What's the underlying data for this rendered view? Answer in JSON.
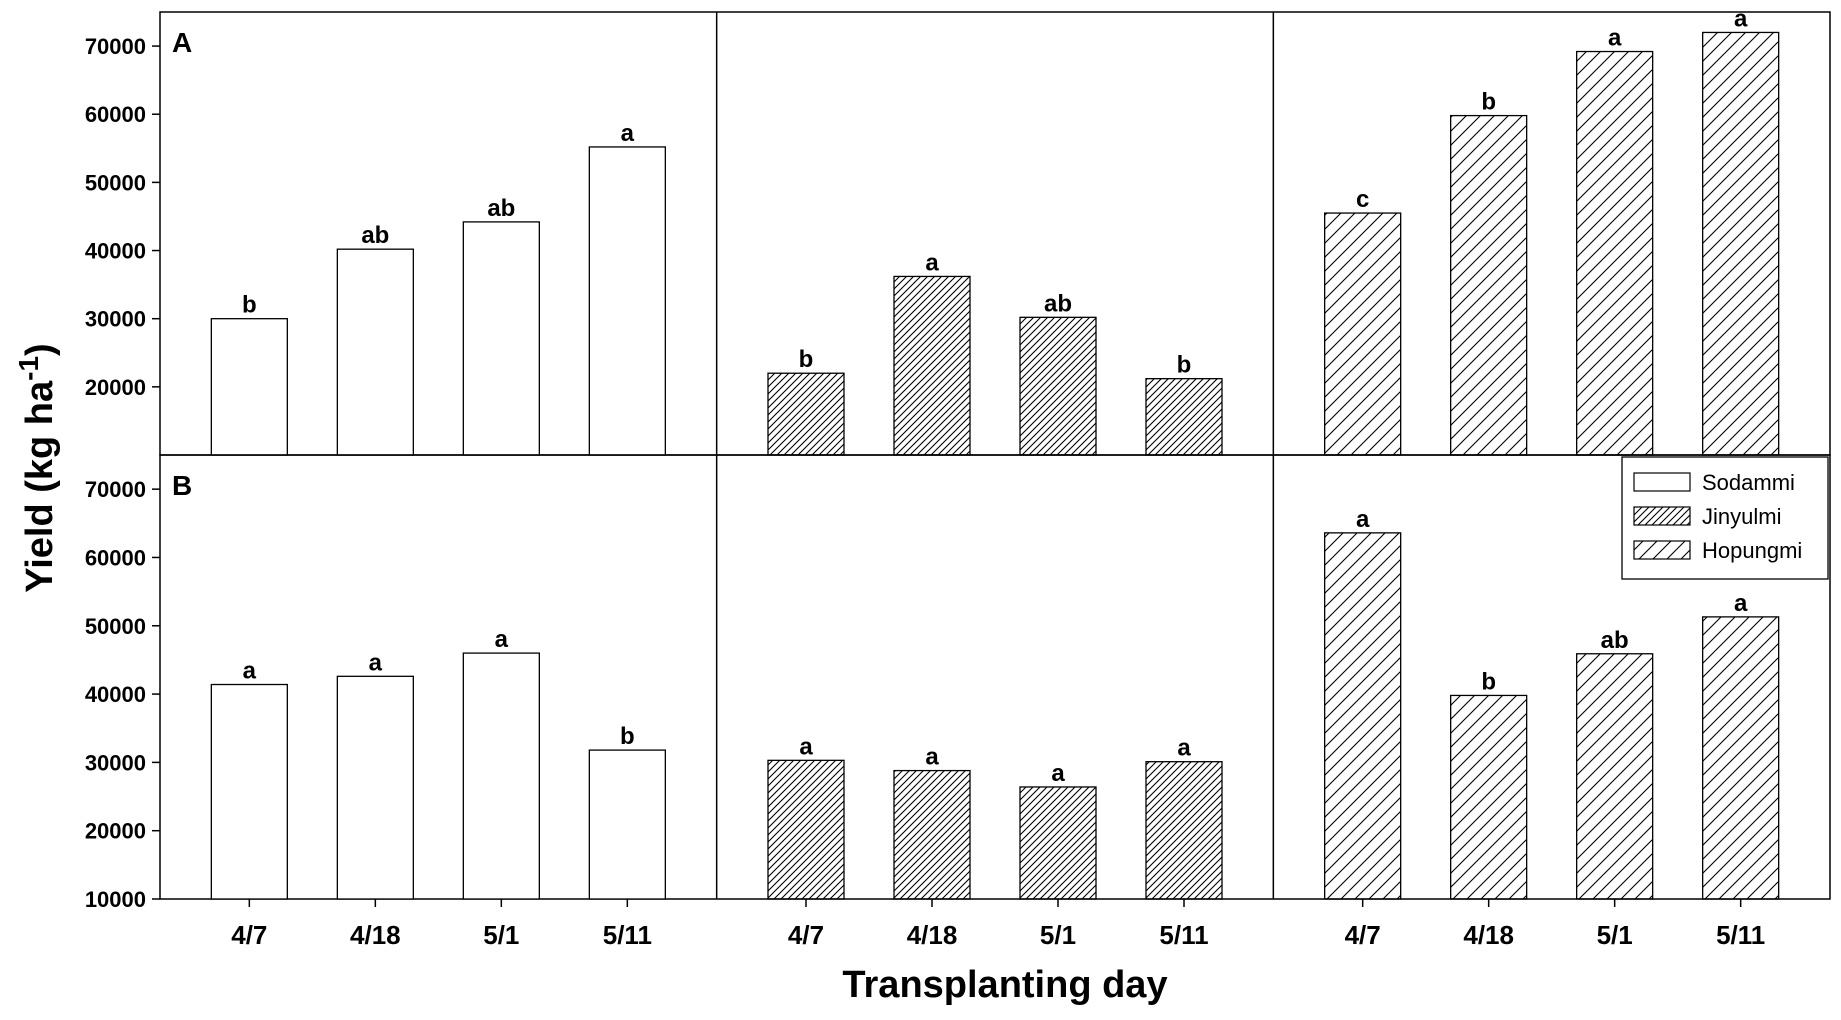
{
  "chart_data": {
    "type": "bar",
    "xlabel": "Transplanting day",
    "ylabel": "Yield (kg ha",
    "ylabel_superscript": "-1",
    "ylabel_suffix": ")",
    "categories": [
      "4/7",
      "4/18",
      "5/1",
      "5/11"
    ],
    "legend": {
      "placement": "right, inside panel B",
      "entries": [
        "Sodammi",
        "Jinyulmi",
        "Hopungmi"
      ]
    },
    "varieties": [
      {
        "name": "Sodammi",
        "pattern": "none"
      },
      {
        "name": "Jinyulmi",
        "pattern": "dense-diagonal"
      },
      {
        "name": "Hopungmi",
        "pattern": "sparse-diagonal"
      }
    ],
    "panels": [
      {
        "label": "A",
        "ylim": [
          10000,
          75000
        ],
        "yticks": [
          "20000",
          "30000",
          "40000",
          "50000",
          "60000",
          "70000"
        ],
        "series": [
          {
            "name": "Sodammi",
            "values": [
              30000,
              40200,
              44200,
              55200
            ],
            "letters": [
              "b",
              "ab",
              "ab",
              "a"
            ]
          },
          {
            "name": "Jinyulmi",
            "values": [
              22000,
              36200,
              30200,
              21200
            ],
            "letters": [
              "b",
              "a",
              "ab",
              "b"
            ]
          },
          {
            "name": "Hopungmi",
            "values": [
              45500,
              59800,
              69200,
              72000
            ],
            "letters": [
              "c",
              "b",
              "a",
              "a"
            ]
          }
        ]
      },
      {
        "label": "B",
        "ylim": [
          10000,
          75000
        ],
        "yticks": [
          "10000",
          "20000",
          "30000",
          "40000",
          "50000",
          "60000",
          "70000"
        ],
        "series": [
          {
            "name": "Sodammi",
            "values": [
              41400,
              42600,
              46000,
              31800
            ],
            "letters": [
              "a",
              "a",
              "a",
              "b"
            ]
          },
          {
            "name": "Jinyulmi",
            "values": [
              30300,
              28800,
              26400,
              30100
            ],
            "letters": [
              "a",
              "a",
              "a",
              "a"
            ]
          },
          {
            "name": "Hopungmi",
            "values": [
              63600,
              39800,
              45900,
              51300
            ],
            "letters": [
              "a",
              "b",
              "ab",
              "a"
            ]
          }
        ]
      }
    ]
  }
}
